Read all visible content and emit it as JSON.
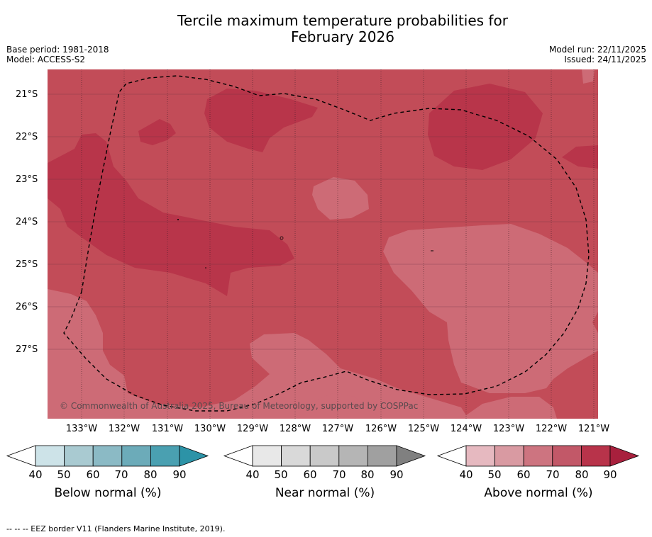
{
  "title_line1": "Tercile maximum temperature probabilities for",
  "title_line2": "February 2026",
  "base_period": "Base period: 1981-2018",
  "model": "Model: ACCESS-S2",
  "model_run": "Model run: 22/11/2025",
  "issued": "Issued: 24/11/2025",
  "copyright": "© Commonwealth of Australia 2025, Bureau of Meteorology, supported by COSPPac",
  "lat_labels": [
    "21°S",
    "22°S",
    "23°S",
    "24°S",
    "25°S",
    "26°S",
    "27°S"
  ],
  "lon_labels": [
    "133°W",
    "132°W",
    "131°W",
    "130°W",
    "129°W",
    "128°W",
    "127°W",
    "126°W",
    "125°W",
    "124°W",
    "123°W",
    "122°W",
    "121°W"
  ],
  "colorbars": [
    {
      "label": "Below normal (%)",
      "ticks": [
        "40",
        "50",
        "60",
        "70",
        "80",
        "90"
      ],
      "colors": [
        "#ffffff",
        "#cde3e8",
        "#a9cad1",
        "#8bbac5",
        "#6cabb9",
        "#4aa0b1",
        "#2c93a7"
      ]
    },
    {
      "label": "Near normal (%)",
      "ticks": [
        "40",
        "50",
        "60",
        "70",
        "80",
        "90"
      ],
      "colors": [
        "#ffffff",
        "#e8e8e8",
        "#d9d9d9",
        "#c9c9c9",
        "#b5b5b5",
        "#a0a0a0",
        "#808080"
      ]
    },
    {
      "label": "Above normal (%)",
      "ticks": [
        "40",
        "50",
        "60",
        "70",
        "80",
        "90"
      ],
      "colors": [
        "#ffffff",
        "#e6b9c0",
        "#d99aa2",
        "#cd7480",
        "#c25868",
        "#b8334a",
        "#a8203d"
      ]
    }
  ],
  "footnote": "--  --  -- EEZ border V11 (Flanders Marine Institute, 2019).",
  "colors": {
    "class_60_70": "#cd6b76",
    "class_70_80": "#c24c58",
    "class_80_90": "#b8354a",
    "eez_border": "#000000"
  }
}
